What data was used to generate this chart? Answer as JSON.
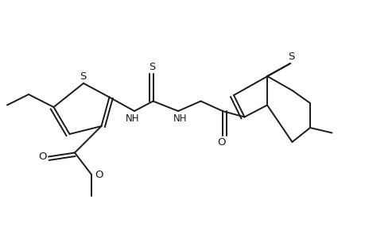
{
  "bg_color": "#ffffff",
  "line_color": "#1a1a1a",
  "line_width": 1.4,
  "font_size": 8.5,
  "figsize": [
    4.6,
    3.0
  ],
  "dpi": 100,
  "xlim": [
    0,
    9.2
  ],
  "ylim": [
    0,
    6.0
  ]
}
